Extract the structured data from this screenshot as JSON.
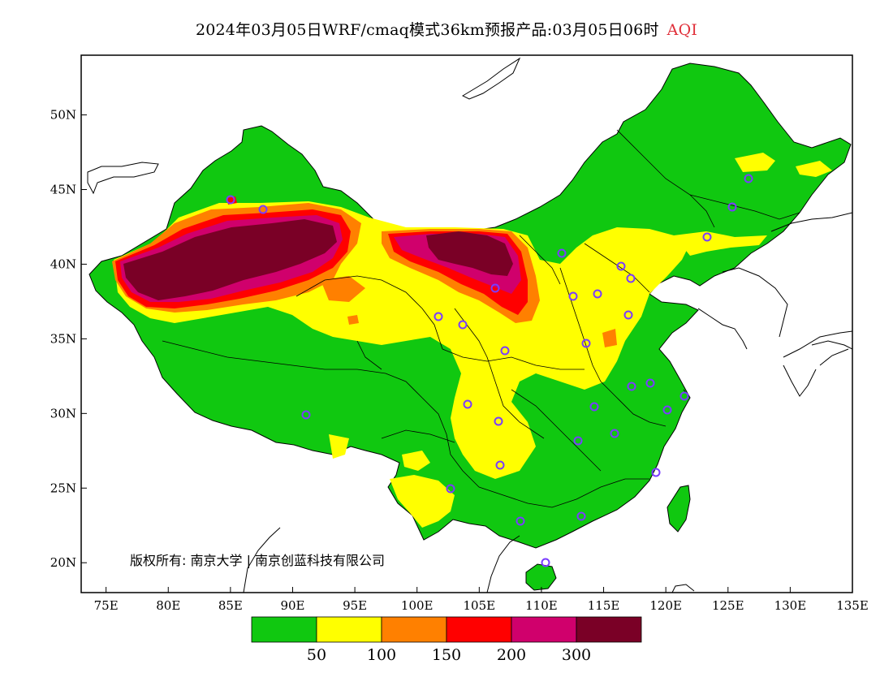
{
  "title": {
    "main": "2024年03月05日WRF/cmaq模式36km预报产品:03月05日06时",
    "pollutant": "AQI",
    "pollutant_color": "#e0303a"
  },
  "map": {
    "lon_range": [
      73,
      135
    ],
    "lat_range": [
      18,
      54
    ],
    "x_ticks": [
      "75E",
      "80E",
      "85E",
      "90E",
      "95E",
      "100E",
      "105E",
      "110E",
      "115E",
      "120E",
      "125E",
      "130E",
      "135E"
    ],
    "y_ticks": [
      "20N",
      "25N",
      "30N",
      "35N",
      "40N",
      "45N",
      "50N"
    ],
    "copyright": "版权所有: 南京大学 | 南京创蓝科技有限公司"
  },
  "legend": {
    "colors": [
      "#10c810",
      "#ffff00",
      "#ff8000",
      "#ff0000",
      "#d0006c",
      "#7a0026"
    ],
    "labels": [
      "50",
      "100",
      "150",
      "200",
      "300"
    ]
  },
  "colors": {
    "good": "#10c810",
    "moderate": "#ffff00",
    "unhealthy_sensitive": "#ff8000",
    "unhealthy": "#ff0000",
    "very_unhealthy": "#d0006c",
    "hazardous": "#7a0026",
    "station_marker": "#7a3cff"
  }
}
